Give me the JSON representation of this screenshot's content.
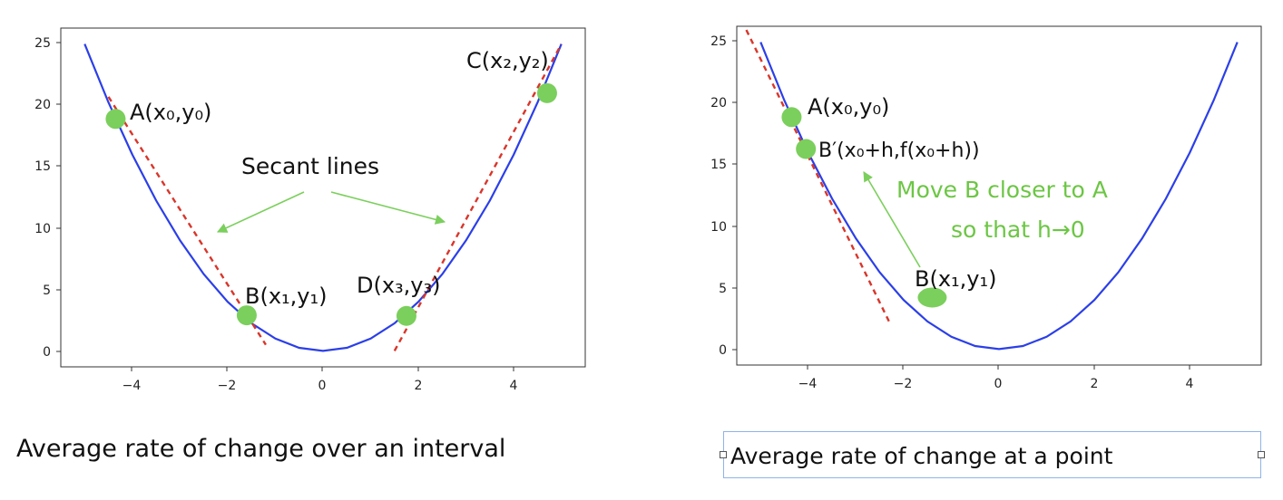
{
  "chart_data": [
    {
      "type": "line",
      "function": "y = x^2",
      "x": [
        -5,
        -4.5,
        -4,
        -3.5,
        -3,
        -2.5,
        -2,
        -1.5,
        -1,
        -0.5,
        0,
        0.5,
        1,
        1.5,
        2,
        2.5,
        3,
        3.5,
        4,
        4.5,
        5
      ],
      "series": [
        {
          "values": [
            25,
            20.25,
            16,
            12.25,
            9,
            6.25,
            4,
            2.25,
            1,
            0.25,
            0,
            0.25,
            1,
            2.25,
            4,
            6.25,
            9,
            12.25,
            16,
            20.25,
            25
          ],
          "color": "#2b3fe8"
        }
      ],
      "xlim": [
        -5.5,
        5.5
      ],
      "ylim": [
        -1.3,
        26.3
      ],
      "xticks": [
        "−4",
        "−2",
        "0",
        "2",
        "4"
      ],
      "yticks": [
        "0",
        "5",
        "10",
        "15",
        "20",
        "25"
      ],
      "points": [
        {
          "x": -4.35,
          "y": 18.9,
          "label": "A(x₀,y₀)"
        },
        {
          "x": -1.6,
          "y": 2.9,
          "label": "B(x₁,y₁)"
        },
        {
          "x": 4.7,
          "y": 21.0,
          "label": "C(x₂,y₂)"
        },
        {
          "x": 1.75,
          "y": 2.85,
          "label": "D(x₃,y₃)"
        }
      ],
      "secant_lines": [
        {
          "x": [
            -4.5,
            -1.2
          ],
          "y": [
            20.7,
            0.5
          ],
          "color": "#d9362b"
        },
        {
          "x": [
            1.5,
            5.0
          ],
          "y": [
            0.0,
            25.0
          ],
          "color": "#d9362b"
        }
      ],
      "annotation": "Secant lines",
      "caption": "Average rate of change over an interval"
    },
    {
      "type": "line",
      "function": "y = x^2",
      "x": [
        -5,
        -4.5,
        -4,
        -3.5,
        -3,
        -2.5,
        -2,
        -1.5,
        -1,
        -0.5,
        0,
        0.5,
        1,
        1.5,
        2,
        2.5,
        3,
        3.5,
        4,
        4.5,
        5
      ],
      "series": [
        {
          "values": [
            25,
            20.25,
            16,
            12.25,
            9,
            6.25,
            4,
            2.25,
            1,
            0.25,
            0,
            0.25,
            1,
            2.25,
            4,
            6.25,
            9,
            12.25,
            16,
            20.25,
            25
          ],
          "color": "#2b3fe8"
        }
      ],
      "xlim": [
        -5.5,
        5.5
      ],
      "ylim": [
        -1.3,
        26.3
      ],
      "xticks": [
        "−4",
        "−2",
        "0",
        "2",
        "4"
      ],
      "yticks": [
        "0",
        "5",
        "10",
        "15",
        "20",
        "25"
      ],
      "points": [
        {
          "x": -4.35,
          "y": 18.9,
          "label": "A(x₀,y₀)"
        },
        {
          "x": -4.05,
          "y": 16.3,
          "label": "B′(x₀+h,f(x₀+h))"
        },
        {
          "x": -1.4,
          "y": 4.2,
          "label": "B(x₁,y₁)"
        }
      ],
      "tangent_line": {
        "x": [
          -5.3,
          -2.3
        ],
        "y": [
          26.0,
          2.2
        ],
        "color": "#d9362b"
      },
      "annotation_lines": [
        "Move B closer to A",
        "so that h→0"
      ],
      "annotation_color": "#6cc644",
      "caption": "Average rate of change at a point"
    }
  ]
}
